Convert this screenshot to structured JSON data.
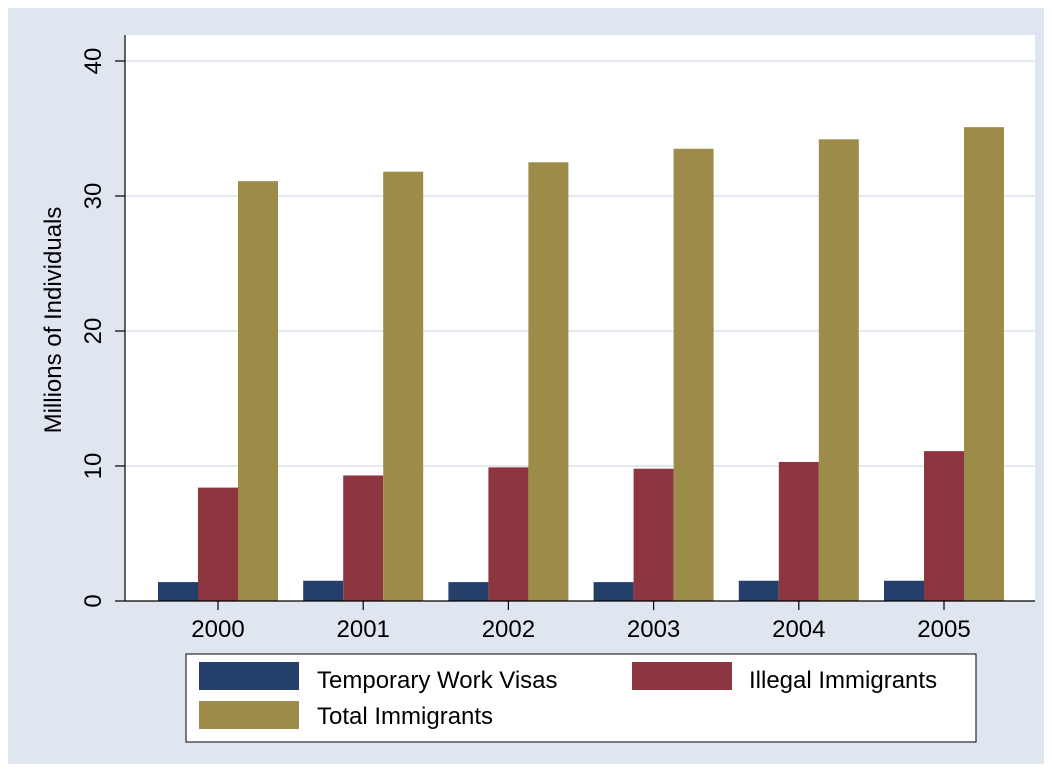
{
  "chart_data": {
    "type": "bar",
    "title": "",
    "xlabel": "",
    "ylabel": "Millions of Individuals",
    "ylim": [
      0,
      40
    ],
    "yticks": [
      0,
      10,
      20,
      30,
      40
    ],
    "grid": true,
    "legend_position": "bottom",
    "categories": [
      "2000",
      "2001",
      "2002",
      "2003",
      "2004",
      "2005"
    ],
    "series": [
      {
        "name": "Temporary Work Visas",
        "color": "#253f6b",
        "values": [
          1.4,
          1.5,
          1.4,
          1.4,
          1.5,
          1.5
        ]
      },
      {
        "name": "Illegal Immigrants",
        "color": "#8e3640",
        "values": [
          8.4,
          9.3,
          9.9,
          9.8,
          10.3,
          11.1
        ]
      },
      {
        "name": "Total Immigrants",
        "color": "#9d8b4a",
        "values": [
          31.1,
          31.8,
          32.5,
          33.5,
          34.2,
          35.1
        ]
      }
    ]
  }
}
